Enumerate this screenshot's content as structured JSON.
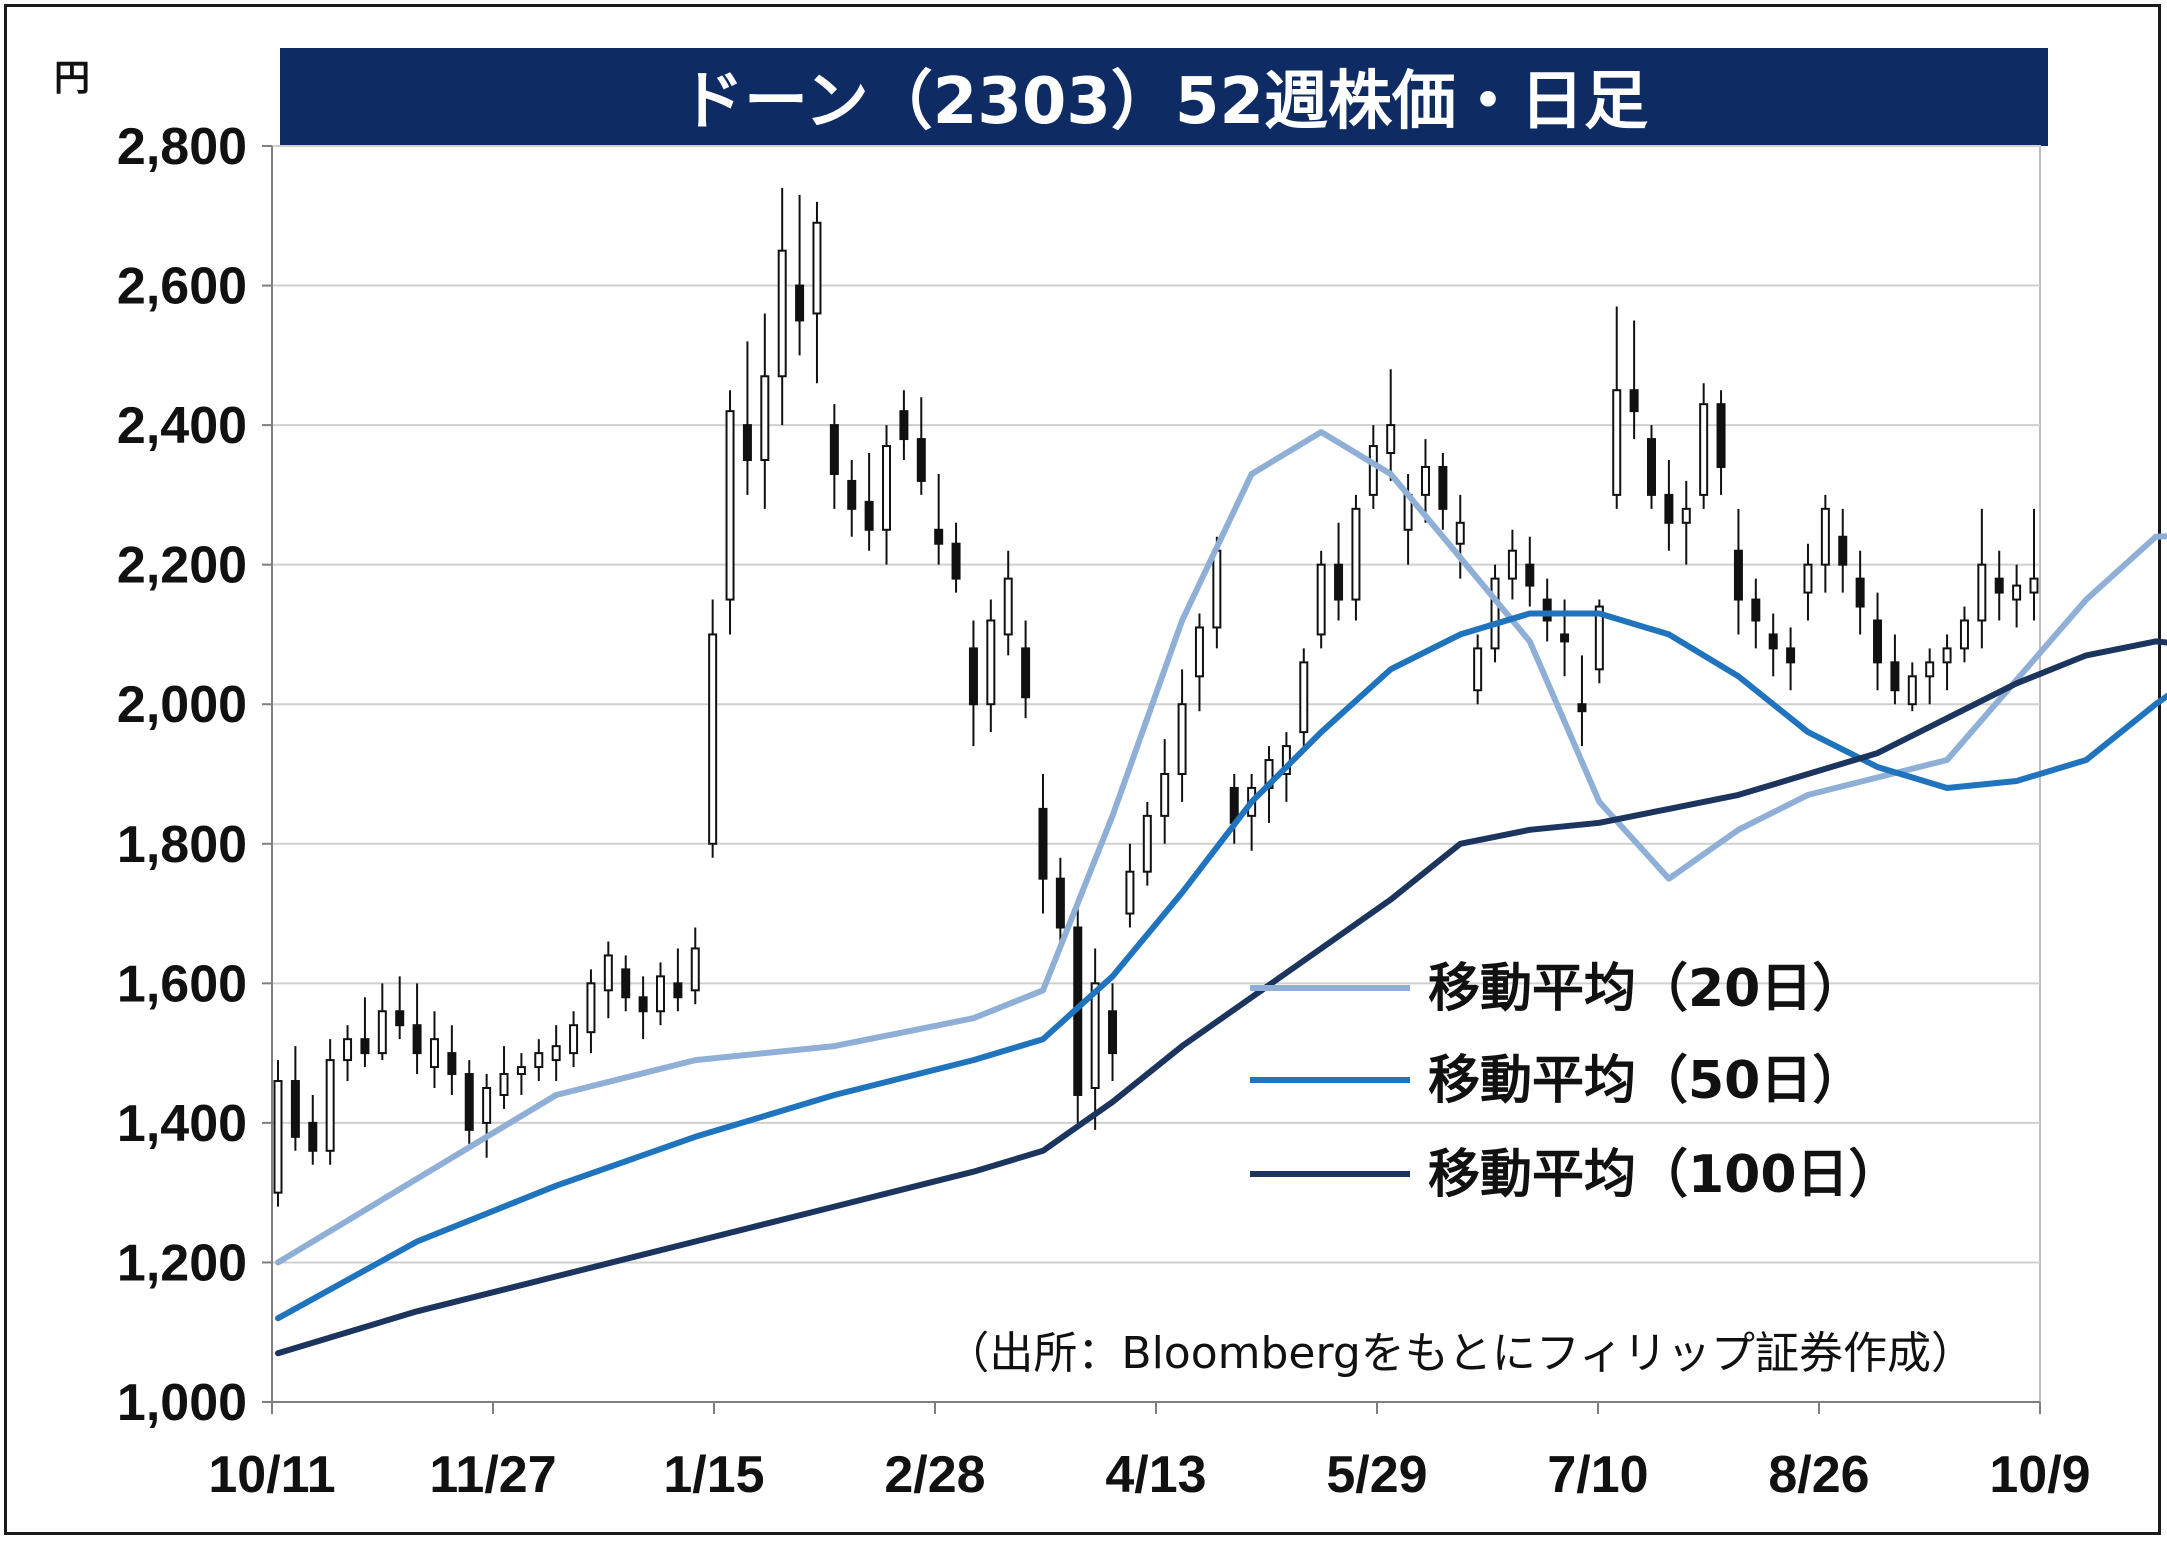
{
  "chart_data": {
    "type": "candlestick",
    "title": "ドーン（2303）52週株価・日足",
    "unit_label": "円",
    "source": "（出所：Bloombergをもとにフィリップ証券作成）",
    "x_tick_labels": [
      "10/11",
      "11/27",
      "1/15",
      "2/28",
      "4/13",
      "5/29",
      "7/10",
      "8/26",
      "10/9"
    ],
    "y_ticks": [
      1000,
      1200,
      1400,
      1600,
      1800,
      2000,
      2200,
      2400,
      2600,
      2800
    ],
    "y_tick_labels": [
      "1,000",
      "1,200",
      "1,400",
      "1,600",
      "1,800",
      "2,000",
      "2,200",
      "2,400",
      "2,600",
      "2,800"
    ],
    "ylim": [
      1000,
      2800
    ],
    "grid": true,
    "legend_position": "lower-right",
    "candles": [
      [
        1300,
        1490,
        1280,
        1460
      ],
      [
        1460,
        1510,
        1360,
        1380
      ],
      [
        1400,
        1440,
        1340,
        1360
      ],
      [
        1360,
        1520,
        1340,
        1490
      ],
      [
        1490,
        1540,
        1460,
        1520
      ],
      [
        1520,
        1580,
        1480,
        1500
      ],
      [
        1500,
        1600,
        1490,
        1560
      ],
      [
        1560,
        1610,
        1520,
        1540
      ],
      [
        1540,
        1600,
        1470,
        1500
      ],
      [
        1480,
        1560,
        1450,
        1520
      ],
      [
        1500,
        1540,
        1440,
        1470
      ],
      [
        1470,
        1490,
        1370,
        1390
      ],
      [
        1400,
        1470,
        1350,
        1450
      ],
      [
        1440,
        1510,
        1420,
        1470
      ],
      [
        1470,
        1500,
        1440,
        1480
      ],
      [
        1480,
        1520,
        1460,
        1500
      ],
      [
        1490,
        1540,
        1460,
        1510
      ],
      [
        1500,
        1560,
        1480,
        1540
      ],
      [
        1530,
        1620,
        1500,
        1600
      ],
      [
        1590,
        1660,
        1550,
        1640
      ],
      [
        1620,
        1640,
        1560,
        1580
      ],
      [
        1580,
        1610,
        1520,
        1560
      ],
      [
        1560,
        1630,
        1540,
        1610
      ],
      [
        1600,
        1650,
        1560,
        1580
      ],
      [
        1590,
        1680,
        1570,
        1650
      ],
      [
        1800,
        2150,
        1780,
        2100
      ],
      [
        2150,
        2450,
        2100,
        2420
      ],
      [
        2400,
        2520,
        2300,
        2350
      ],
      [
        2350,
        2560,
        2280,
        2470
      ],
      [
        2470,
        2740,
        2400,
        2650
      ],
      [
        2600,
        2730,
        2500,
        2550
      ],
      [
        2560,
        2720,
        2460,
        2690
      ],
      [
        2400,
        2430,
        2280,
        2330
      ],
      [
        2320,
        2350,
        2240,
        2280
      ],
      [
        2290,
        2360,
        2220,
        2250
      ],
      [
        2250,
        2400,
        2200,
        2370
      ],
      [
        2420,
        2450,
        2350,
        2380
      ],
      [
        2380,
        2440,
        2300,
        2320
      ],
      [
        2250,
        2330,
        2200,
        2230
      ],
      [
        2230,
        2260,
        2160,
        2180
      ],
      [
        2080,
        2120,
        1940,
        2000
      ],
      [
        2000,
        2150,
        1960,
        2120
      ],
      [
        2100,
        2220,
        2070,
        2180
      ],
      [
        2080,
        2120,
        1980,
        2010
      ],
      [
        1850,
        1900,
        1700,
        1750
      ],
      [
        1750,
        1780,
        1650,
        1680
      ],
      [
        1680,
        1720,
        1400,
        1440
      ],
      [
        1450,
        1650,
        1390,
        1600
      ],
      [
        1560,
        1600,
        1460,
        1500
      ],
      [
        1700,
        1800,
        1680,
        1760
      ],
      [
        1760,
        1860,
        1740,
        1840
      ],
      [
        1840,
        1950,
        1800,
        1900
      ],
      [
        1900,
        2050,
        1860,
        2000
      ],
      [
        2040,
        2130,
        1990,
        2110
      ],
      [
        2110,
        2240,
        2080,
        2220
      ],
      [
        1880,
        1900,
        1800,
        1830
      ],
      [
        1840,
        1900,
        1790,
        1880
      ],
      [
        1880,
        1940,
        1830,
        1920
      ],
      [
        1900,
        1960,
        1860,
        1940
      ],
      [
        1960,
        2080,
        1940,
        2060
      ],
      [
        2100,
        2220,
        2080,
        2200
      ],
      [
        2200,
        2260,
        2120,
        2150
      ],
      [
        2150,
        2300,
        2120,
        2280
      ],
      [
        2300,
        2400,
        2280,
        2370
      ],
      [
        2360,
        2480,
        2320,
        2400
      ],
      [
        2250,
        2330,
        2200,
        2300
      ],
      [
        2300,
        2380,
        2260,
        2340
      ],
      [
        2340,
        2360,
        2250,
        2280
      ],
      [
        2230,
        2300,
        2180,
        2260
      ],
      [
        2020,
        2100,
        2000,
        2080
      ],
      [
        2080,
        2200,
        2060,
        2180
      ],
      [
        2180,
        2250,
        2150,
        2220
      ],
      [
        2200,
        2240,
        2140,
        2170
      ],
      [
        2150,
        2180,
        2090,
        2120
      ],
      [
        2100,
        2150,
        2040,
        2090
      ],
      [
        2000,
        2070,
        1940,
        1990
      ],
      [
        2050,
        2150,
        2030,
        2140
      ],
      [
        2300,
        2570,
        2280,
        2450
      ],
      [
        2450,
        2550,
        2380,
        2420
      ],
      [
        2380,
        2400,
        2280,
        2300
      ],
      [
        2300,
        2350,
        2220,
        2260
      ],
      [
        2260,
        2320,
        2200,
        2280
      ],
      [
        2300,
        2460,
        2280,
        2430
      ],
      [
        2430,
        2450,
        2300,
        2340
      ],
      [
        2220,
        2280,
        2100,
        2150
      ],
      [
        2150,
        2180,
        2080,
        2120
      ],
      [
        2100,
        2130,
        2040,
        2080
      ],
      [
        2080,
        2110,
        2020,
        2060
      ],
      [
        2160,
        2230,
        2120,
        2200
      ],
      [
        2200,
        2300,
        2160,
        2280
      ],
      [
        2240,
        2280,
        2160,
        2200
      ],
      [
        2180,
        2220,
        2100,
        2140
      ],
      [
        2120,
        2160,
        2020,
        2060
      ],
      [
        2060,
        2100,
        2000,
        2020
      ],
      [
        2000,
        2060,
        1990,
        2040
      ],
      [
        2040,
        2080,
        2000,
        2060
      ],
      [
        2060,
        2100,
        2020,
        2080
      ],
      [
        2080,
        2140,
        2060,
        2120
      ],
      [
        2120,
        2280,
        2080,
        2200
      ],
      [
        2180,
        2220,
        2120,
        2160
      ],
      [
        2150,
        2200,
        2110,
        2170
      ],
      [
        2160,
        2280,
        2120,
        2180
      ]
    ],
    "series": [
      {
        "name": "移動平均（20日）",
        "color": "#8fafd7",
        "points": [
          [
            0,
            1200
          ],
          [
            8,
            1320
          ],
          [
            16,
            1440
          ],
          [
            24,
            1490
          ],
          [
            32,
            1510
          ],
          [
            40,
            1550
          ],
          [
            44,
            1590
          ],
          [
            48,
            1840
          ],
          [
            52,
            2120
          ],
          [
            56,
            2330
          ],
          [
            60,
            2390
          ],
          [
            64,
            2330
          ],
          [
            68,
            2210
          ],
          [
            72,
            2090
          ],
          [
            76,
            1860
          ],
          [
            80,
            1750
          ],
          [
            84,
            1820
          ],
          [
            88,
            1870
          ],
          [
            96,
            1920
          ],
          [
            104,
            2150
          ],
          [
            108,
            2240
          ],
          [
            112,
            2245
          ],
          [
            116,
            2190
          ],
          [
            120,
            2130
          ],
          [
            124,
            2120
          ],
          [
            128,
            2200
          ],
          [
            132,
            2250
          ],
          [
            136,
            2280
          ],
          [
            140,
            2210
          ],
          [
            144,
            2170
          ],
          [
            148,
            2150
          ],
          [
            152,
            2130
          ],
          [
            158,
            2080
          ],
          [
            162,
            2090
          ],
          [
            166,
            2100
          ]
        ]
      },
      {
        "name": "移動平均（50日）",
        "color": "#1f74bd",
        "points": [
          [
            0,
            1120
          ],
          [
            8,
            1230
          ],
          [
            16,
            1310
          ],
          [
            24,
            1380
          ],
          [
            32,
            1440
          ],
          [
            40,
            1490
          ],
          [
            44,
            1520
          ],
          [
            48,
            1610
          ],
          [
            52,
            1730
          ],
          [
            56,
            1860
          ],
          [
            60,
            1960
          ],
          [
            64,
            2050
          ],
          [
            68,
            2100
          ],
          [
            72,
            2130
          ],
          [
            76,
            2130
          ],
          [
            80,
            2100
          ],
          [
            84,
            2040
          ],
          [
            88,
            1960
          ],
          [
            92,
            1910
          ],
          [
            96,
            1880
          ],
          [
            100,
            1890
          ],
          [
            104,
            1920
          ],
          [
            108,
            2000
          ],
          [
            112,
            2070
          ],
          [
            116,
            2100
          ],
          [
            120,
            2120
          ],
          [
            124,
            2150
          ],
          [
            128,
            2190
          ],
          [
            132,
            2220
          ],
          [
            136,
            2200
          ],
          [
            140,
            2190
          ],
          [
            144,
            2195
          ],
          [
            148,
            2190
          ],
          [
            152,
            2180
          ],
          [
            156,
            2160
          ],
          [
            162,
            2150
          ],
          [
            166,
            2130
          ]
        ]
      },
      {
        "name": "移動平均（100日）",
        "color": "#1b355e",
        "points": [
          [
            0,
            1070
          ],
          [
            8,
            1130
          ],
          [
            16,
            1180
          ],
          [
            24,
            1230
          ],
          [
            32,
            1280
          ],
          [
            40,
            1330
          ],
          [
            44,
            1360
          ],
          [
            48,
            1430
          ],
          [
            52,
            1510
          ],
          [
            56,
            1580
          ],
          [
            60,
            1650
          ],
          [
            64,
            1720
          ],
          [
            68,
            1800
          ],
          [
            72,
            1820
          ],
          [
            76,
            1830
          ],
          [
            80,
            1850
          ],
          [
            84,
            1870
          ],
          [
            88,
            1900
          ],
          [
            92,
            1930
          ],
          [
            96,
            1980
          ],
          [
            100,
            2030
          ],
          [
            104,
            2070
          ],
          [
            108,
            2090
          ],
          [
            112,
            2080
          ],
          [
            116,
            2050
          ],
          [
            120,
            2040
          ],
          [
            124,
            2050
          ],
          [
            128,
            2060
          ],
          [
            132,
            2080
          ],
          [
            136,
            2100
          ],
          [
            140,
            2130
          ],
          [
            144,
            2150
          ],
          [
            148,
            2160
          ],
          [
            152,
            2170
          ],
          [
            156,
            2175
          ],
          [
            160,
            2175
          ],
          [
            166,
            2175
          ]
        ]
      }
    ]
  }
}
